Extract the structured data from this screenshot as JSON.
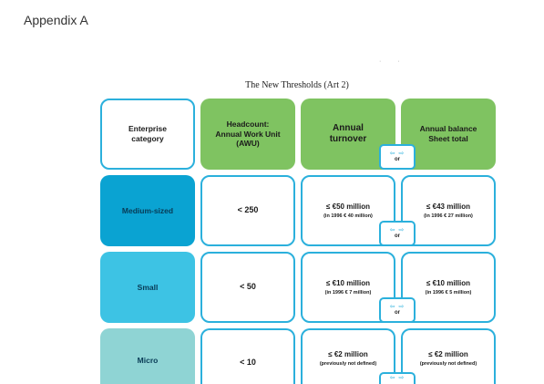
{
  "page": {
    "heading": "Appendix A"
  },
  "figure": {
    "title": "The New Thresholds (Art 2)",
    "headers": {
      "category": "Enterprise category",
      "headcount": "Headcount: Annual Work Unit (AWU)",
      "turnover": "Annual turnover",
      "balance": "Annual balance Sheet total"
    },
    "or_label": "or",
    "or_arrows": "⇦ ⇨",
    "rows": [
      {
        "category": "Medium-sized",
        "headcount": "< 250",
        "turnover": "≤ €50 million",
        "turnover_note": "(in 1996 € 40 million)",
        "balance": "≤ €43 million",
        "balance_note": "(in 1996 € 27 million)"
      },
      {
        "category": "Small",
        "headcount": "< 50",
        "turnover": "≤ €10 million",
        "turnover_note": "(in 1996 € 7 million)",
        "balance": "≤ €10 million",
        "balance_note": "(in 1996 € 5 million)"
      },
      {
        "category": "Micro",
        "headcount": "< 10",
        "turnover": "≤ €2 million",
        "turnover_note": "(previously not defined)",
        "balance": "≤ €2 million",
        "balance_note": "(previously not defined)"
      }
    ],
    "colors": {
      "header_green": "#7fc361",
      "border_blue": "#2bb0dc",
      "medium": "#0aa3d2",
      "small": "#3dc3e4",
      "micro": "#8fd4d4"
    }
  }
}
